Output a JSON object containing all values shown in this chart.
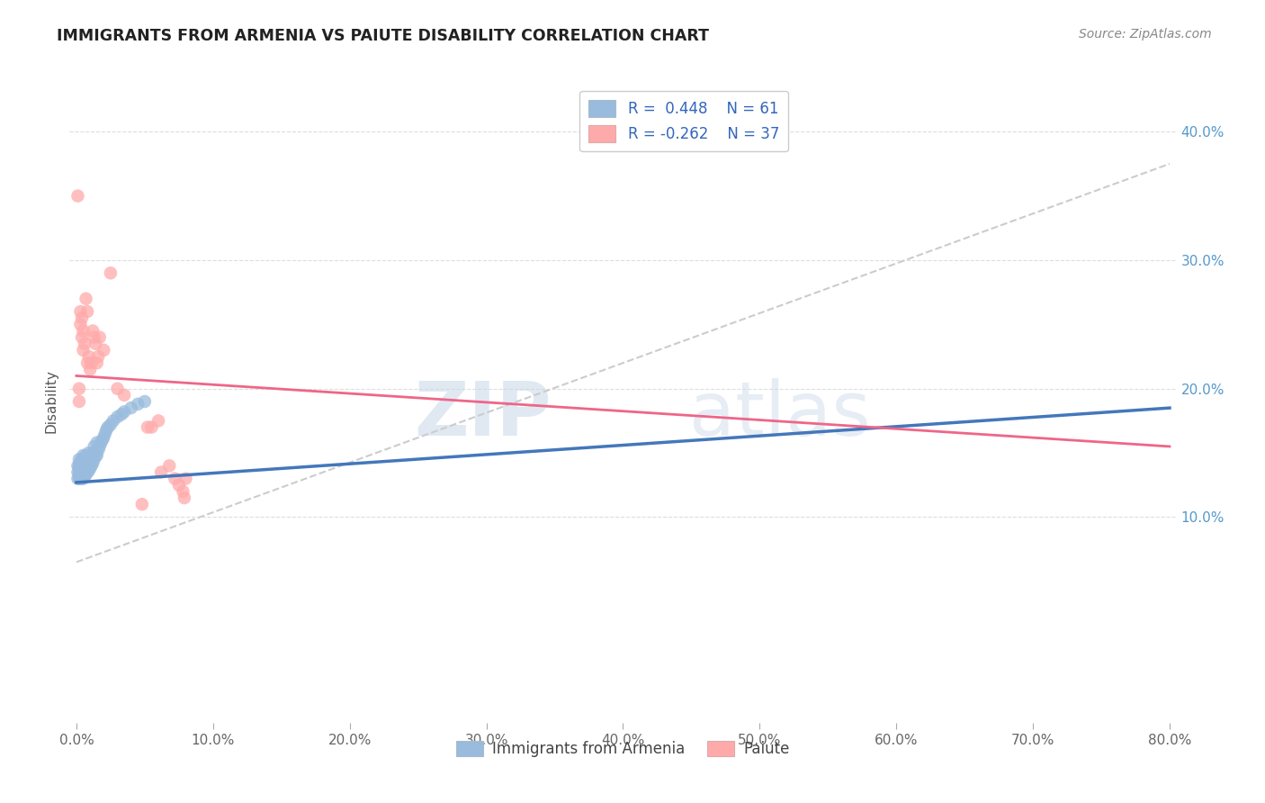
{
  "title": "IMMIGRANTS FROM ARMENIA VS PAIUTE DISABILITY CORRELATION CHART",
  "source": "Source: ZipAtlas.com",
  "ylabel": "Disability",
  "blue_color": "#99BBDD",
  "pink_color": "#FFAAAA",
  "blue_line_color": "#4477BB",
  "pink_line_color": "#EE6688",
  "dashed_line_color": "#CCCCCC",
  "watermark_zip": "ZIP",
  "watermark_atlas": "atlas",
  "legend_r_blue": "R =  0.448",
  "legend_n_blue": "N = 61",
  "legend_r_pink": "R = -0.262",
  "legend_n_pink": "N = 37",
  "xlim": [
    0.0,
    0.8
  ],
  "ylim": [
    -0.06,
    0.44
  ],
  "xtick_vals": [
    0.0,
    0.1,
    0.2,
    0.3,
    0.4,
    0.5,
    0.6,
    0.7,
    0.8
  ],
  "xtick_labels": [
    "0.0%",
    "10.0%",
    "20.0%",
    "30.0%",
    "40.0%",
    "50.0%",
    "60.0%",
    "70.0%",
    "80.0%"
  ],
  "ytick_vals": [
    0.1,
    0.2,
    0.3,
    0.4
  ],
  "ytick_labels": [
    "10.0%",
    "20.0%",
    "30.0%",
    "40.0%"
  ],
  "blue_scatter_x": [
    0.001,
    0.001,
    0.001,
    0.002,
    0.002,
    0.002,
    0.002,
    0.002,
    0.002,
    0.003,
    0.003,
    0.003,
    0.003,
    0.003,
    0.004,
    0.004,
    0.004,
    0.004,
    0.004,
    0.005,
    0.005,
    0.005,
    0.005,
    0.006,
    0.006,
    0.006,
    0.007,
    0.007,
    0.007,
    0.008,
    0.008,
    0.009,
    0.009,
    0.009,
    0.01,
    0.01,
    0.011,
    0.011,
    0.012,
    0.012,
    0.013,
    0.013,
    0.014,
    0.015,
    0.015,
    0.016,
    0.017,
    0.018,
    0.019,
    0.02,
    0.021,
    0.022,
    0.023,
    0.025,
    0.027,
    0.03,
    0.033,
    0.035,
    0.04,
    0.045,
    0.05
  ],
  "blue_scatter_y": [
    0.13,
    0.135,
    0.14,
    0.13,
    0.132,
    0.135,
    0.138,
    0.14,
    0.145,
    0.13,
    0.133,
    0.136,
    0.14,
    0.143,
    0.13,
    0.133,
    0.136,
    0.14,
    0.145,
    0.13,
    0.135,
    0.14,
    0.148,
    0.132,
    0.138,
    0.145,
    0.133,
    0.14,
    0.148,
    0.135,
    0.142,
    0.136,
    0.142,
    0.15,
    0.138,
    0.145,
    0.14,
    0.148,
    0.142,
    0.15,
    0.145,
    0.155,
    0.148,
    0.148,
    0.158,
    0.152,
    0.155,
    0.158,
    0.16,
    0.162,
    0.165,
    0.168,
    0.17,
    0.172,
    0.175,
    0.178,
    0.18,
    0.182,
    0.185,
    0.188,
    0.19
  ],
  "pink_scatter_x": [
    0.001,
    0.002,
    0.002,
    0.003,
    0.003,
    0.004,
    0.004,
    0.005,
    0.005,
    0.006,
    0.007,
    0.008,
    0.008,
    0.009,
    0.01,
    0.011,
    0.012,
    0.013,
    0.014,
    0.015,
    0.016,
    0.017,
    0.02,
    0.025,
    0.03,
    0.035,
    0.048,
    0.052,
    0.055,
    0.06,
    0.062,
    0.068,
    0.072,
    0.075,
    0.078,
    0.079,
    0.08
  ],
  "pink_scatter_y": [
    0.35,
    0.19,
    0.2,
    0.25,
    0.26,
    0.24,
    0.255,
    0.23,
    0.245,
    0.235,
    0.27,
    0.26,
    0.22,
    0.225,
    0.215,
    0.22,
    0.245,
    0.24,
    0.235,
    0.22,
    0.225,
    0.24,
    0.23,
    0.29,
    0.2,
    0.195,
    0.11,
    0.17,
    0.17,
    0.175,
    0.135,
    0.14,
    0.13,
    0.125,
    0.12,
    0.115,
    0.13
  ],
  "blue_line_x": [
    0.0,
    0.8
  ],
  "blue_line_y": [
    0.127,
    0.185
  ],
  "pink_line_x": [
    0.0,
    0.8
  ],
  "pink_line_y": [
    0.21,
    0.155
  ],
  "dashed_line_x": [
    0.0,
    0.8
  ],
  "dashed_line_y": [
    0.065,
    0.375
  ]
}
